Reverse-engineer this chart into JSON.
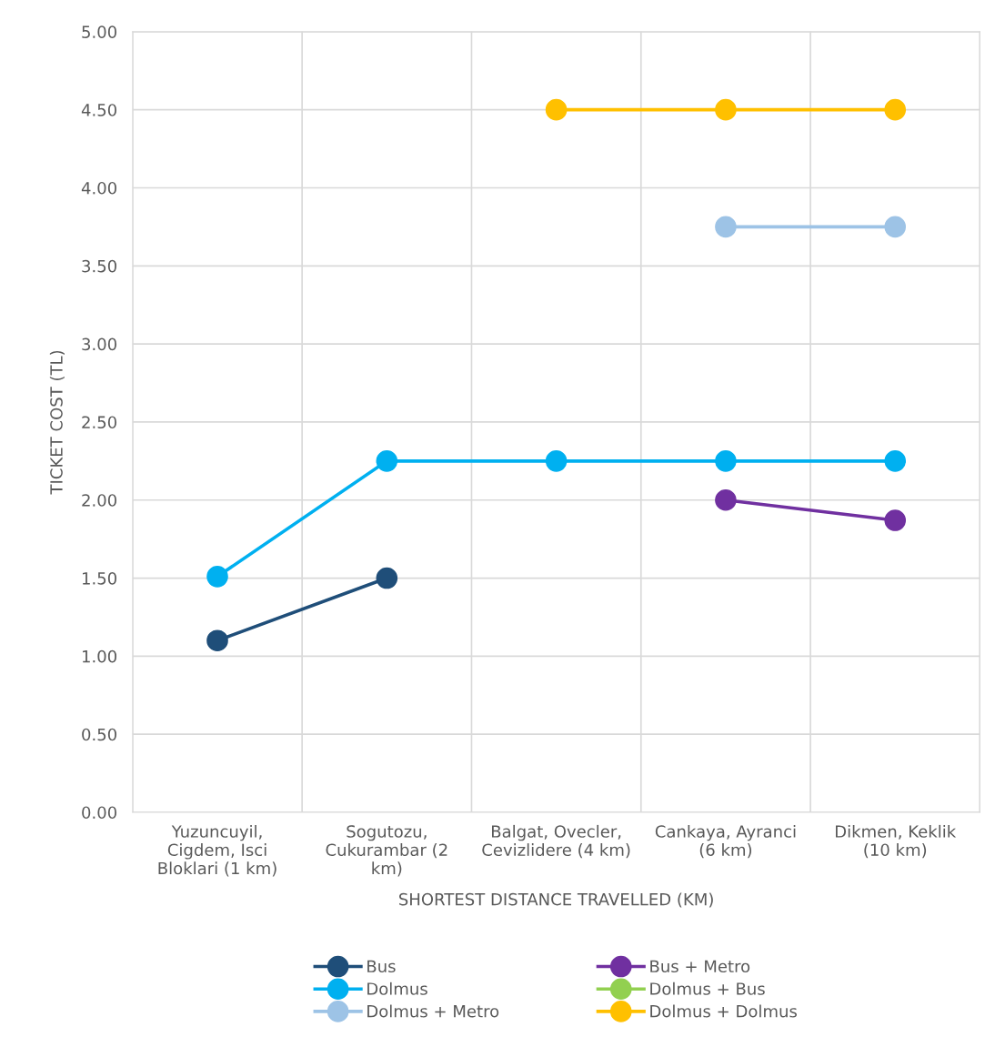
{
  "chart_data": {
    "type": "line",
    "xlabel": "SHORTEST DISTANCE TRAVELLED (KM)",
    "ylabel": "TICKET COST (TL)",
    "categories": [
      "Yuzuncuyil,\nCigdem, Isci\nBloklari (1 km)",
      "Sogutozu,\nCukurambar (2\nkm)",
      "Balgat, Ovecler,\nCevizlidere (4 km)",
      "Cankaya, Ayranci\n(6 km)",
      "Dikmen, Keklik\n(10 km)"
    ],
    "series": [
      {
        "name": "Bus",
        "color": "#1f4e79",
        "values": [
          1.1,
          1.5,
          null,
          null,
          null
        ]
      },
      {
        "name": "Bus + Metro",
        "color": "#7030a0",
        "values": [
          null,
          null,
          null,
          2.0,
          1.87
        ]
      },
      {
        "name": "Dolmus",
        "color": "#00b0f0",
        "values": [
          1.51,
          2.25,
          2.25,
          2.25,
          2.25
        ]
      },
      {
        "name": "Dolmus + Bus",
        "color": "#92d050",
        "values": [
          null,
          null,
          null,
          null,
          null
        ]
      },
      {
        "name": "Dolmus + Metro",
        "color": "#9dc3e6",
        "values": [
          null,
          null,
          null,
          3.75,
          3.75
        ]
      },
      {
        "name": "Dolmus + Dolmus",
        "color": "#ffc000",
        "values": [
          null,
          null,
          4.5,
          4.5,
          4.5
        ]
      }
    ],
    "ylim": [
      0,
      5
    ],
    "yticks": [
      {
        "value": 0,
        "label": "0.00"
      },
      {
        "value": 0.5,
        "label": "0.50"
      },
      {
        "value": 1,
        "label": "1.00"
      },
      {
        "value": 1.5,
        "label": "1.50"
      },
      {
        "value": 2,
        "label": "2.00"
      },
      {
        "value": 2.5,
        "label": "2.50"
      },
      {
        "value": 3,
        "label": "3.00"
      },
      {
        "value": 3.5,
        "label": "3.50"
      },
      {
        "value": 4,
        "label": "4.00"
      },
      {
        "value": 4.5,
        "label": "4.50"
      },
      {
        "value": 5,
        "label": "5.00"
      }
    ],
    "grid": true,
    "legend": "bottom",
    "marker": "circle",
    "line_style": "solid"
  }
}
